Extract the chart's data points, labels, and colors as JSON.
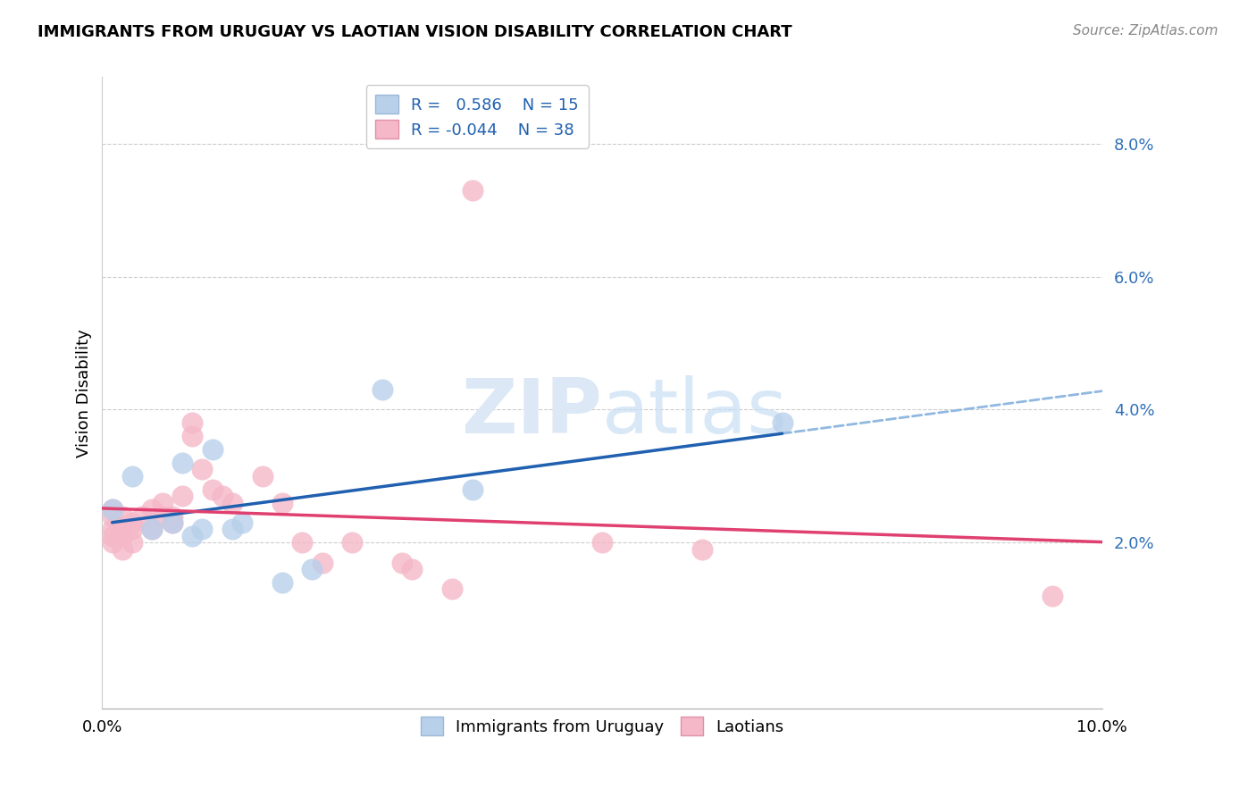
{
  "title": "IMMIGRANTS FROM URUGUAY VS LAOTIAN VISION DISABILITY CORRELATION CHART",
  "source": "Source: ZipAtlas.com",
  "ylabel": "Vision Disability",
  "xlim": [
    0.0,
    0.1
  ],
  "ylim": [
    -0.005,
    0.09
  ],
  "yticks": [
    0.02,
    0.04,
    0.06,
    0.08
  ],
  "ytick_labels": [
    "2.0%",
    "4.0%",
    "6.0%",
    "8.0%"
  ],
  "xticks": [
    0.0,
    0.02,
    0.04,
    0.06,
    0.08,
    0.1
  ],
  "xtick_labels": [
    "0.0%",
    "",
    "",
    "",
    "",
    "10.0%"
  ],
  "watermark_zip": "ZIP",
  "watermark_atlas": "atlas",
  "blue_color": "#b8d0ea",
  "pink_color": "#f5b8c8",
  "blue_line_color": "#2060b0",
  "pink_line_color": "#e04070",
  "blue_dash_color": "#90b8e0",
  "uruguay_x": [
    0.001,
    0.003,
    0.005,
    0.007,
    0.008,
    0.009,
    0.01,
    0.011,
    0.013,
    0.014,
    0.018,
    0.021,
    0.028,
    0.037,
    0.068
  ],
  "uruguay_y": [
    0.025,
    0.03,
    0.022,
    0.023,
    0.032,
    0.021,
    0.022,
    0.034,
    0.022,
    0.023,
    0.014,
    0.016,
    0.043,
    0.028,
    0.038
  ],
  "laotian_x": [
    0.001,
    0.001,
    0.001,
    0.001,
    0.001,
    0.002,
    0.002,
    0.002,
    0.002,
    0.003,
    0.003,
    0.003,
    0.004,
    0.005,
    0.005,
    0.006,
    0.006,
    0.007,
    0.007,
    0.008,
    0.009,
    0.009,
    0.01,
    0.011,
    0.012,
    0.013,
    0.016,
    0.018,
    0.02,
    0.022,
    0.025,
    0.03,
    0.031,
    0.035,
    0.037,
    0.05,
    0.06,
    0.095
  ],
  "laotian_y": [
    0.025,
    0.024,
    0.022,
    0.021,
    0.02,
    0.024,
    0.022,
    0.021,
    0.019,
    0.023,
    0.022,
    0.02,
    0.024,
    0.025,
    0.022,
    0.026,
    0.024,
    0.024,
    0.023,
    0.027,
    0.038,
    0.036,
    0.031,
    0.028,
    0.027,
    0.026,
    0.03,
    0.026,
    0.02,
    0.017,
    0.02,
    0.017,
    0.016,
    0.013,
    0.073,
    0.02,
    0.019,
    0.012
  ],
  "title_fontsize": 13,
  "source_fontsize": 11,
  "tick_fontsize": 13,
  "ylabel_fontsize": 13
}
